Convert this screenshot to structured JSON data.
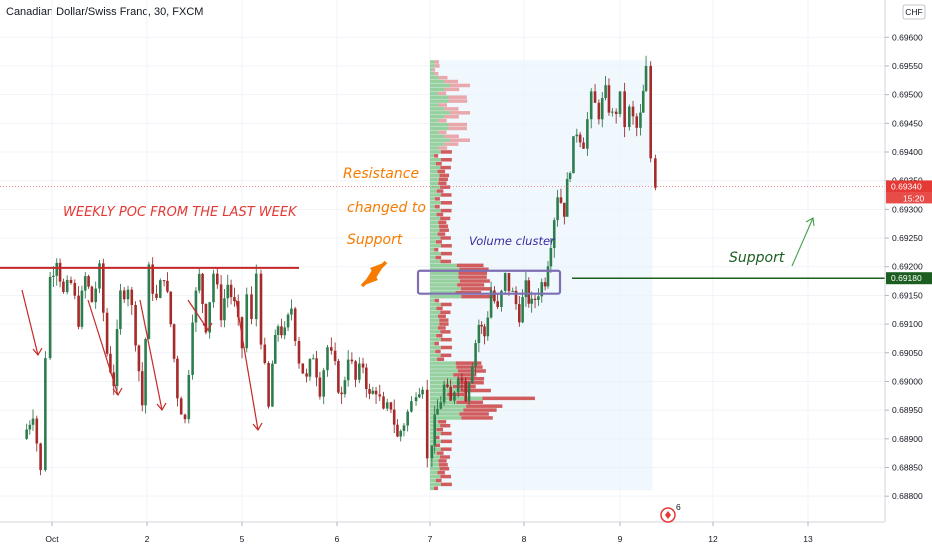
{
  "header": {
    "title": "Canadian Dollar/Swiss Franc, 30, FXCM",
    "currency": "CHF"
  },
  "chart_data": {
    "type": "candlestick",
    "ylim": [
      0.68755,
      0.69665
    ],
    "y_ticks": [
      "0.69600",
      "0.69550",
      "0.69500",
      "0.69450",
      "0.69400",
      "0.69350",
      "0.69300",
      "0.69250",
      "0.69200",
      "0.69150",
      "0.69100",
      "0.69050",
      "0.69000",
      "0.68950",
      "0.68900",
      "0.68850",
      "0.68800"
    ],
    "x_ticks": [
      {
        "label": "Oct",
        "day": 1
      },
      {
        "label": "2",
        "day": 2
      },
      {
        "label": "5",
        "day": 3
      },
      {
        "label": "6",
        "day": 4
      },
      {
        "label": "7",
        "day": 5
      },
      {
        "label": "8",
        "day": 6
      },
      {
        "label": "9",
        "day": 7
      },
      {
        "label": "12",
        "day": 8
      },
      {
        "label": "13",
        "day": 9
      }
    ],
    "x_range": [
      0.7,
      9.95
    ],
    "price_tags": [
      {
        "value": 0.6934,
        "label": "0.69340",
        "sub": "15:20",
        "color": "#e53935"
      },
      {
        "value": 0.6918,
        "label": "0.69180",
        "color": "#1b5e20"
      }
    ],
    "poc_line": {
      "value": 0.69198,
      "color": "#c62828"
    },
    "support_line": {
      "value": 0.6918,
      "color": "#1b5e20",
      "x_from_day": 6.5
    },
    "volume_cluster_box": {
      "day_from": 5.0,
      "day_to": 6.35,
      "y_from": 0.69153,
      "y_to": 0.69193
    },
    "volume_profile_range": {
      "day_from": 5.0,
      "day_to": 7.35,
      "y_from": 0.6881,
      "y_to": 0.6956
    },
    "price_path": [
      [
        0.7,
        0.689
      ],
      [
        0.8,
        0.6895
      ],
      [
        0.88,
        0.6884
      ],
      [
        0.93,
        0.6905
      ],
      [
        0.98,
        0.6918
      ],
      [
        1.05,
        0.6922
      ],
      [
        1.12,
        0.6915
      ],
      [
        1.2,
        0.6917
      ],
      [
        1.28,
        0.6911
      ],
      [
        1.35,
        0.6918
      ],
      [
        1.42,
        0.6914
      ],
      [
        1.5,
        0.6919
      ],
      [
        1.58,
        0.6905
      ],
      [
        1.65,
        0.69
      ],
      [
        1.72,
        0.6915
      ],
      [
        1.8,
        0.6917
      ],
      [
        1.88,
        0.6908
      ],
      [
        1.95,
        0.6896
      ],
      [
        2.02,
        0.6919
      ],
      [
        2.1,
        0.6914
      ],
      [
        2.18,
        0.6919
      ],
      [
        2.25,
        0.691
      ],
      [
        2.32,
        0.6898
      ],
      [
        2.4,
        0.6893
      ],
      [
        2.48,
        0.6912
      ],
      [
        2.55,
        0.6918
      ],
      [
        2.62,
        0.691
      ],
      [
        2.7,
        0.6919
      ],
      [
        2.78,
        0.6912
      ],
      [
        2.85,
        0.6917
      ],
      [
        2.92,
        0.6913
      ],
      [
        3.0,
        0.6906
      ],
      [
        3.05,
        0.6915
      ],
      [
        3.1,
        0.691
      ],
      [
        3.15,
        0.6919
      ],
      [
        3.2,
        0.6908
      ],
      [
        3.28,
        0.6895
      ],
      [
        3.32,
        0.6903
      ],
      [
        3.38,
        0.691
      ],
      [
        3.45,
        0.6908
      ],
      [
        3.52,
        0.6913
      ],
      [
        3.6,
        0.6904
      ],
      [
        3.68,
        0.69
      ],
      [
        3.75,
        0.6905
      ],
      [
        3.82,
        0.6899
      ],
      [
        3.9,
        0.6906
      ],
      [
        3.98,
        0.6902
      ],
      [
        4.05,
        0.6897
      ],
      [
        4.12,
        0.6905
      ],
      [
        4.2,
        0.69
      ],
      [
        4.28,
        0.6903
      ],
      [
        4.35,
        0.6897
      ],
      [
        4.42,
        0.6899
      ],
      [
        4.5,
        0.6894
      ],
      [
        4.58,
        0.6896
      ],
      [
        4.65,
        0.689
      ],
      [
        4.72,
        0.6893
      ],
      [
        4.8,
        0.6896
      ],
      [
        4.85,
        0.6899
      ],
      [
        4.92,
        0.69
      ],
      [
        4.97,
        0.6886
      ],
      [
        5.02,
        0.689
      ],
      [
        5.08,
        0.6895
      ],
      [
        5.15,
        0.6899
      ],
      [
        5.22,
        0.6896
      ],
      [
        5.3,
        0.6902
      ],
      [
        5.38,
        0.6898
      ],
      [
        5.45,
        0.6904
      ],
      [
        5.52,
        0.691
      ],
      [
        5.58,
        0.6908
      ],
      [
        5.65,
        0.6916
      ],
      [
        5.72,
        0.6912
      ],
      [
        5.8,
        0.6918
      ],
      [
        5.88,
        0.6915
      ],
      [
        5.95,
        0.6912
      ],
      [
        6.02,
        0.6916
      ],
      [
        6.08,
        0.6913
      ],
      [
        6.15,
        0.6916
      ],
      [
        6.22,
        0.6918
      ],
      [
        6.28,
        0.6925
      ],
      [
        6.35,
        0.6933
      ],
      [
        6.42,
        0.693
      ],
      [
        6.48,
        0.6938
      ],
      [
        6.55,
        0.6944
      ],
      [
        6.62,
        0.6942
      ],
      [
        6.7,
        0.6949
      ],
      [
        6.78,
        0.6947
      ],
      [
        6.85,
        0.695
      ],
      [
        6.92,
        0.6946
      ],
      [
        7.0,
        0.6949
      ],
      [
        7.05,
        0.6945
      ],
      [
        7.1,
        0.6947
      ],
      [
        7.18,
        0.6944
      ],
      [
        7.22,
        0.6946
      ],
      [
        7.28,
        0.6954
      ],
      [
        7.33,
        0.6939
      ],
      [
        7.38,
        0.6935
      ]
    ]
  },
  "annotations": {
    "resistance_lines": [
      "Resistance",
      "changed to",
      "Support"
    ],
    "weekly_poc": "WEEKLY POC FROM THE LAST WEEK",
    "volume_cluster": "Volume cluster",
    "support": "Support",
    "event_badge": "6"
  },
  "colors": {
    "up": "#26a69a",
    "down": "#ef5350",
    "candle_up_dark": "#1e6b3a",
    "candle_down_dark": "#8b1a1a",
    "profile_up": "#4caf50",
    "profile_down": "#c62828",
    "profile_bg": "#e3f2fd"
  }
}
